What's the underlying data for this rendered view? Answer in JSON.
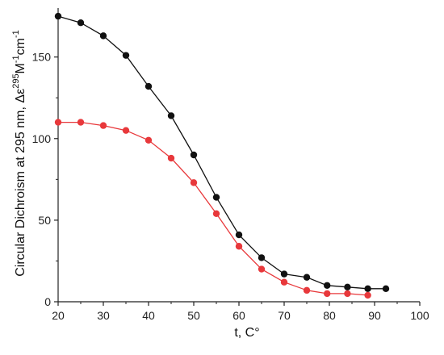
{
  "chart_data": {
    "type": "line",
    "xlabel": "t, C°",
    "ylabel_main": "Circular Dichroism at 295 nm, Δε",
    "ylabel_sup1": "295",
    "ylabel_units": "M",
    "ylabel_sup2": "-1",
    "ylabel_units2": "cm",
    "ylabel_sup3": "-1",
    "xlim": [
      20,
      100
    ],
    "ylim": [
      0,
      180
    ],
    "x_ticks": [
      20,
      30,
      40,
      50,
      60,
      70,
      80,
      90,
      100
    ],
    "y_ticks": [
      0,
      50,
      100,
      150
    ],
    "grid": false,
    "series": [
      {
        "color": "#111111",
        "x": [
          20,
          25,
          30,
          35,
          40,
          45,
          50,
          55,
          60,
          65,
          70,
          75,
          79.5,
          84,
          88.5,
          92.5
        ],
        "y": [
          175,
          171,
          163,
          151,
          132,
          114,
          90,
          64,
          41,
          27,
          17,
          15,
          10,
          9,
          8,
          8
        ]
      },
      {
        "color": "#e8383b",
        "x": [
          20,
          25,
          30,
          35,
          40,
          45,
          50,
          55,
          60,
          65,
          70,
          75,
          79.5,
          84,
          88.5
        ],
        "y": [
          110,
          110,
          108,
          105,
          99,
          88,
          73,
          54,
          34,
          20,
          12,
          7,
          5,
          5,
          4
        ]
      }
    ]
  }
}
